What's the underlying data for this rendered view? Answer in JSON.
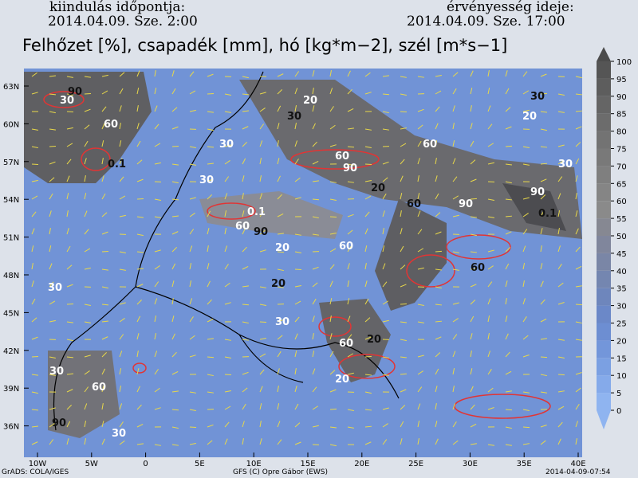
{
  "header": {
    "init_label": "kiindulás időpontja:",
    "init_time": "2014.04.09. Sze. 2:00",
    "valid_label": "érvényesség ideje:",
    "valid_time": "2014.04.09. Sze. 17:00",
    "title": "Felhőzet [%], csapadék [mm], hó [kg*m−2], szél [m*s−1]"
  },
  "map": {
    "lat_labels": [
      "63N",
      "60N",
      "57N",
      "54N",
      "51N",
      "48N",
      "45N",
      "42N",
      "39N",
      "36N"
    ],
    "lon_labels": [
      "10W",
      "5W",
      "0",
      "5E",
      "10E",
      "15E",
      "20E",
      "25E",
      "30E",
      "35E",
      "40E"
    ],
    "contour_labels": [
      "90",
      "30",
      "60",
      "0.1",
      "30",
      "20",
      "30",
      "60",
      "90",
      "20",
      "0.1",
      "60",
      "90",
      "20",
      "60",
      "20",
      "30",
      "60",
      "30",
      "90",
      "90",
      "60",
      "30",
      "20",
      "0.1",
      "30",
      "60",
      "20",
      "30",
      "60",
      "90",
      "30",
      "20",
      "60",
      "30"
    ]
  },
  "colorbar": {
    "ticks": [
      0,
      5,
      10,
      15,
      20,
      25,
      30,
      35,
      40,
      45,
      50,
      55,
      60,
      65,
      70,
      75,
      80,
      85,
      90,
      95,
      100
    ],
    "colors": [
      "#8fb4f0",
      "#85aaea",
      "#7ba0e2",
      "#7396da",
      "#6d8ed2",
      "#6b88c8",
      "#6e86bc",
      "#7486b0",
      "#7a86a6",
      "#80869c",
      "#868892",
      "#8a8a8a",
      "#858585",
      "#7f7f7f",
      "#797979",
      "#737373",
      "#6c6c6c",
      "#656565",
      "#5d5d5d",
      "#555555",
      "#4c4c4c"
    ]
  },
  "footer": {
    "left": "GrADS: COLA/IGES",
    "center": "GFS (C) Opre Gábor (EWS)",
    "right": "2014-04-09-07:54"
  }
}
